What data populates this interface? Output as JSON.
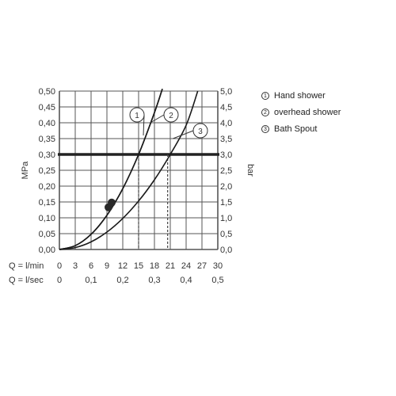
{
  "chart_data": {
    "type": "line",
    "xlabel": "",
    "ylabel_left": "MPa",
    "ylabel_right": "bar",
    "x_row_labels": [
      "Q = l/min",
      "Q = l/sec"
    ],
    "x_ticks_lmin": [
      "0",
      "3",
      "6",
      "9",
      "12",
      "15",
      "18",
      "21",
      "24",
      "27",
      "30"
    ],
    "x_ticks_lsec": [
      "0",
      "0,1",
      "0,2",
      "0,3",
      "0,4",
      "0,5"
    ],
    "y_ticks_left": [
      "0,00",
      "0,05",
      "0,10",
      "0,15",
      "0,20",
      "0,25",
      "0,30",
      "0,35",
      "0,40",
      "0,45",
      "0,50"
    ],
    "y_ticks_right": [
      "0,0",
      "0,5",
      "1,0",
      "1,5",
      "2,0",
      "2,5",
      "3,0",
      "3,5",
      "4,0",
      "4,5",
      "5,0"
    ],
    "xlim": [
      0,
      30
    ],
    "ylim": [
      0,
      0.5
    ],
    "reference_line": {
      "y": 0.3
    },
    "series": [
      {
        "name": "Hand shower",
        "marker": "1",
        "x": [
          0,
          3,
          6,
          9,
          12,
          15,
          18,
          19.5
        ],
        "y": [
          0,
          0.012,
          0.048,
          0.108,
          0.192,
          0.3,
          0.432,
          0.507
        ]
      },
      {
        "name": "overhead shower",
        "marker": "2",
        "x": [
          0,
          3,
          6,
          9,
          12,
          15,
          18,
          19.5
        ],
        "y": [
          0,
          0.012,
          0.048,
          0.108,
          0.192,
          0.3,
          0.432,
          0.507
        ]
      },
      {
        "name": "Bath Spout",
        "marker": "3",
        "x": [
          0,
          3,
          6,
          9,
          12,
          15,
          18,
          21,
          24,
          26.2
        ],
        "y": [
          0,
          0.006,
          0.024,
          0.055,
          0.098,
          0.153,
          0.22,
          0.3,
          0.392,
          0.5
        ]
      }
    ],
    "drop_lines": [
      {
        "x": 15,
        "y": 0.3
      },
      {
        "x": 20.5,
        "y": 0.3
      }
    ],
    "points": [
      {
        "x": 9.3,
        "y": 0.133
      },
      {
        "x": 9.9,
        "y": 0.148
      }
    ],
    "callouts": [
      "1",
      "2",
      "3"
    ],
    "grid": true
  },
  "legend": {
    "items": [
      {
        "num": "1",
        "label": "Hand shower"
      },
      {
        "num": "2",
        "label": "overhead shower"
      },
      {
        "num": "3",
        "label": "Bath Spout"
      }
    ]
  }
}
